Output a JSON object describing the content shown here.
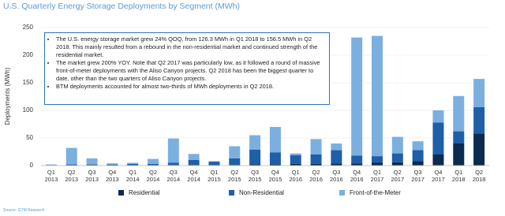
{
  "chart_data": {
    "type": "bar",
    "stacked": true,
    "title": "U.S. Quarterly Energy Storage Deployments by Segment (MWh)",
    "y_label": "Deployments (MWh)",
    "source": "Source: GTM Research",
    "annotations": [
      "The U.S. energy storage market grew 24% QOQ, from 126.3 MWh in Q1 2018 to 156.5 MWh in Q2 2018. This mainly resulted from a rebound in the non-residential market and continued strength of the residential market.",
      "The market grew 200% YOY. Note that Q2 2017 was particularly low, as it followed a round of massive front-of-meter deployments with the Aliso Canyon projects. Q2 2018 has been the biggest quarter to date, other than the two quarters of Aliso Canyon projects.",
      "BTM deployments accounted for almost two-thirds of MWh deployments in Q2 2018."
    ],
    "categories": [
      "Q1 2013",
      "Q2 2013",
      "Q3 2013",
      "Q4 2013",
      "Q1 2014",
      "Q2 2014",
      "Q3 2014",
      "Q4 2014",
      "Q1 2015",
      "Q2 2015",
      "Q3 2015",
      "Q4 2015",
      "Q1 2016",
      "Q2 2016",
      "Q3 2016",
      "Q4 2016",
      "Q1 2017",
      "Q2 2017",
      "Q3 2017",
      "Q4 2017",
      "Q1 2018",
      "Q2 2018"
    ],
    "series": [
      {
        "name": "Residential",
        "color": "#0d2a4f",
        "values": [
          0,
          0,
          0,
          0,
          0,
          0,
          1,
          1,
          1,
          1,
          2,
          2,
          3,
          3,
          4,
          4,
          5,
          6,
          8,
          20,
          40,
          58
        ]
      },
      {
        "name": "Non-Residential",
        "color": "#1f5fa8",
        "values": [
          1,
          2,
          2,
          2,
          3,
          3,
          4,
          9,
          6,
          12,
          27,
          22,
          16,
          17,
          24,
          14,
          12,
          16,
          20,
          58,
          22,
          48
        ]
      },
      {
        "name": "Front-of-the-Meter",
        "color": "#7bafe0",
        "values": [
          1,
          30,
          11,
          2,
          2,
          9,
          44,
          11,
          1,
          22,
          26,
          46,
          3,
          28,
          12,
          214,
          218,
          30,
          16,
          22,
          64,
          51
        ]
      }
    ],
    "ylim": [
      0,
      250
    ],
    "yticks": [
      0,
      50,
      100,
      150,
      200,
      250
    ],
    "grid": true,
    "legend": "bottom"
  }
}
